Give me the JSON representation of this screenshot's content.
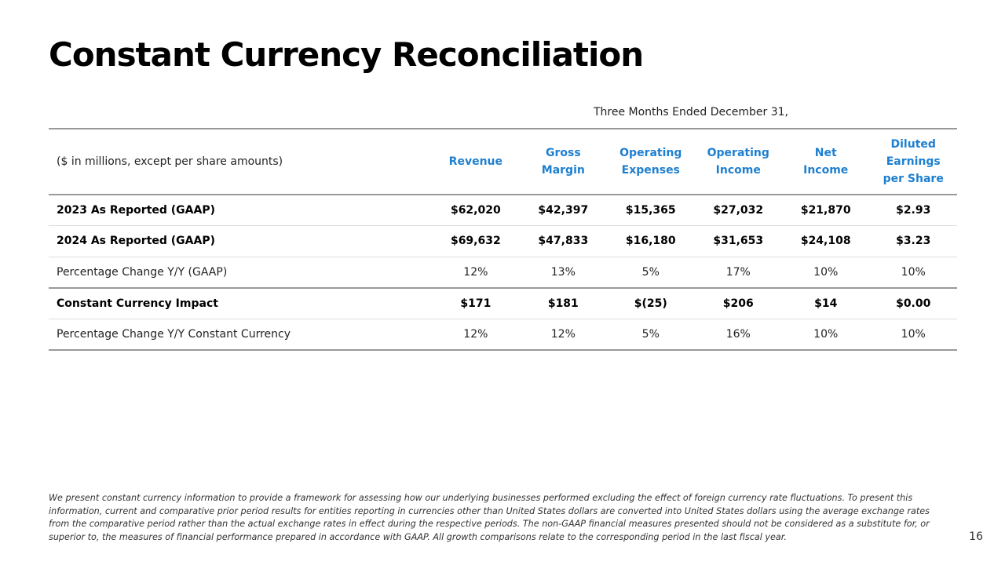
{
  "title": "Constant Currency Reconciliation",
  "period_header": "Three Months Ended December 31,",
  "table": {
    "corner_label": "($ in millions, except per share amounts)",
    "columns": [
      {
        "key": "revenue",
        "label_lines": [
          "Revenue"
        ]
      },
      {
        "key": "gross_margin",
        "label_lines": [
          "Gross",
          "Margin"
        ]
      },
      {
        "key": "operating_expenses",
        "label_lines": [
          "Operating",
          "Expenses"
        ]
      },
      {
        "key": "operating_income",
        "label_lines": [
          "Operating",
          "Income"
        ]
      },
      {
        "key": "net_income",
        "label_lines": [
          "Net",
          "Income"
        ]
      },
      {
        "key": "diluted_eps",
        "label_lines": [
          "Diluted",
          "Earnings",
          "per Share"
        ]
      }
    ],
    "rows": [
      {
        "label": "2023 As Reported (GAAP)",
        "bold": true,
        "values": [
          "$62,020",
          "$42,397",
          "$15,365",
          "$27,032",
          "$21,870",
          "$2.93"
        ]
      },
      {
        "label": "2024 As Reported (GAAP)",
        "bold": true,
        "values": [
          "$69,632",
          "$47,833",
          "$16,180",
          "$31,653",
          "$24,108",
          "$3.23"
        ]
      },
      {
        "label": "Percentage Change Y/Y (GAAP)",
        "bold": false,
        "values": [
          "12%",
          "13%",
          "5%",
          "17%",
          "10%",
          "10%"
        ]
      },
      {
        "label": "Constant Currency Impact",
        "bold": true,
        "values": [
          "$171",
          "$181",
          "$(25)",
          "$206",
          "$14",
          "$0.00"
        ]
      },
      {
        "label": "Percentage Change Y/Y Constant Currency",
        "bold": false,
        "values": [
          "12%",
          "12%",
          "5%",
          "16%",
          "10%",
          "10%"
        ]
      }
    ]
  },
  "footnote": "We present constant currency information to provide a framework for assessing how our underlying businesses performed excluding the effect of foreign currency rate fluctuations. To present this information, current and comparative prior period results for entities reporting in currencies other than United States dollars are converted into United States dollars using the average exchange rates from the comparative period rather than the actual exchange rates in effect during the respective periods. The non-GAAP financial measures presented should not be considered as a substitute for, or superior to, the measures of financial performance prepared in accordance with GAAP. All growth comparisons relate to the corresponding period in the last fiscal year.",
  "page_number": "16",
  "colors": {
    "header_blue": "#1e7fcf",
    "rule_gray": "#999999",
    "row_divider": "#dddddd"
  }
}
